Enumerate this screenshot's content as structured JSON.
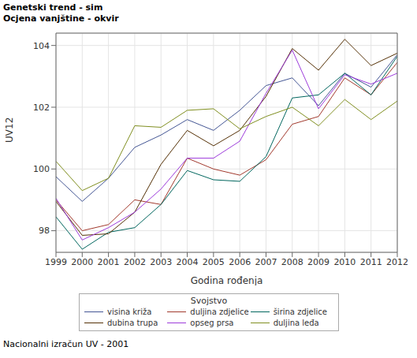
{
  "chart_data": {
    "type": "line",
    "title": "Genetski trend - sim",
    "subtitle": "Ocjena vanjštine - okvir",
    "footnote": "Nacionalni izračun UV - 2001",
    "x_label": "Godina rođenja",
    "y_label": "UV12",
    "legend_title": "Svojstvo",
    "x": [
      1999,
      2000,
      2001,
      2002,
      2003,
      2004,
      2005,
      2006,
      2007,
      2008,
      2009,
      2010,
      2011,
      2012
    ],
    "xlim": [
      1999,
      2012
    ],
    "xticks": [
      1999,
      2000,
      2001,
      2002,
      2003,
      2004,
      2005,
      2006,
      2007,
      2008,
      2009,
      2010,
      2011,
      2012
    ],
    "ylim": [
      97.3,
      104.4
    ],
    "yticks": [
      98,
      100,
      102,
      104
    ],
    "grid": true,
    "legend": "bottom",
    "series": [
      {
        "name": "visina križa",
        "color": "#445694",
        "values": [
          99.75,
          98.95,
          99.7,
          100.7,
          101.1,
          101.6,
          101.25,
          101.9,
          102.7,
          102.95,
          102.05,
          103.1,
          102.65,
          103.7
        ]
      },
      {
        "name": "duljina zdjelice",
        "color": "#A23A2E",
        "values": [
          99.0,
          98.0,
          98.2,
          99.0,
          98.85,
          100.35,
          100.0,
          99.8,
          100.3,
          101.45,
          101.7,
          102.95,
          102.4,
          103.45
        ]
      },
      {
        "name": "širina zdjelice",
        "color": "#01665E",
        "values": [
          98.45,
          97.4,
          97.95,
          98.1,
          98.85,
          99.95,
          99.65,
          99.6,
          100.4,
          102.3,
          102.4,
          103.1,
          102.4,
          103.65
        ]
      },
      {
        "name": "dubina trupa",
        "color": "#543005",
        "values": [
          98.95,
          97.85,
          97.9,
          98.6,
          100.15,
          101.25,
          100.75,
          101.25,
          102.35,
          103.9,
          103.2,
          104.2,
          103.35,
          103.75
        ]
      },
      {
        "name": "opseg prsa",
        "color": "#9D3CDB",
        "values": [
          99.05,
          97.7,
          98.1,
          98.6,
          99.35,
          100.35,
          100.35,
          100.9,
          102.45,
          103.85,
          101.95,
          103.05,
          102.75,
          103.1
        ]
      },
      {
        "name": "duljina leđa",
        "color": "#7F8E1F",
        "values": [
          100.25,
          99.3,
          99.7,
          101.4,
          101.35,
          101.9,
          101.95,
          101.3,
          101.7,
          102.0,
          101.4,
          102.25,
          101.6,
          102.2
        ]
      }
    ]
  }
}
